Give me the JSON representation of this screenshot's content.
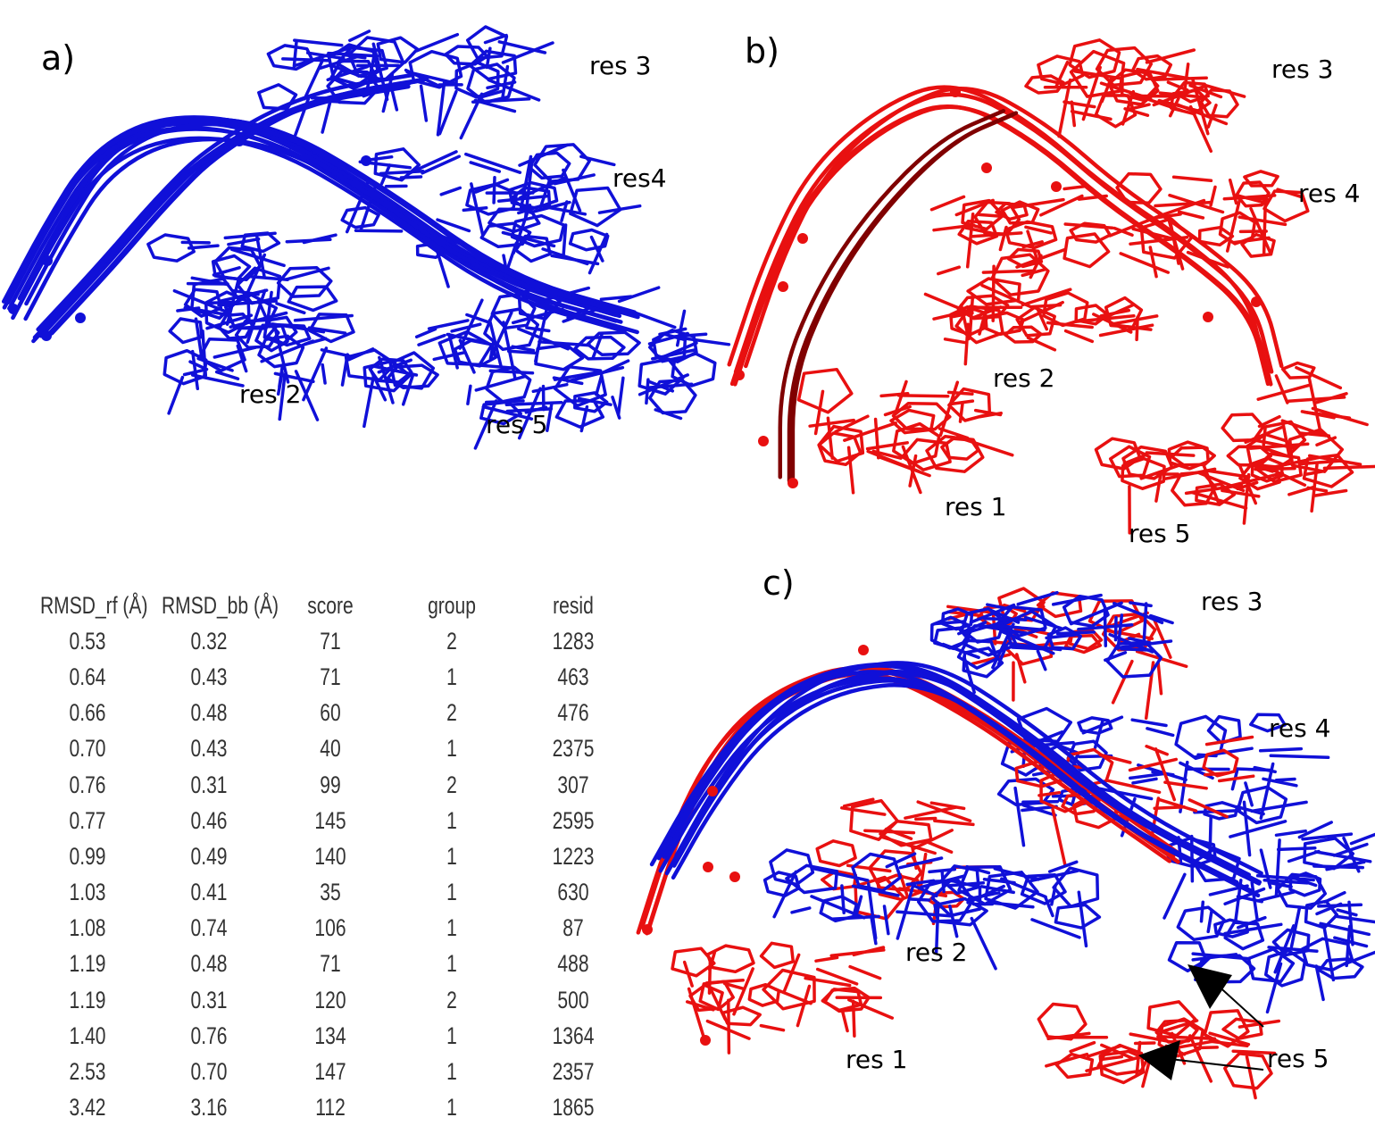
{
  "panels": {
    "a": {
      "label": "a)",
      "residues": [
        "res 3",
        "res4",
        "res 2",
        "res 5"
      ]
    },
    "b": {
      "label": "b)",
      "residues": [
        "res 3",
        "res 4",
        "res 2",
        "res 1",
        "res 5"
      ]
    },
    "c": {
      "label": "c)",
      "residues": [
        "res 3",
        "res 4",
        "res 2",
        "res 1",
        "res 5"
      ]
    }
  },
  "colors": {
    "cluster_a": "#1010d8",
    "cluster_b": "#e81010",
    "backbone_dark": "#800000",
    "arrow": "#000000"
  },
  "table": {
    "headers": [
      "RMSD_rf (Å)",
      "RMSD_bb (Å)",
      "score",
      "group",
      "resid"
    ],
    "rows": [
      [
        "0.53",
        "0.32",
        "71",
        "2",
        "1283"
      ],
      [
        "0.64",
        "0.43",
        "71",
        "1",
        "463"
      ],
      [
        "0.66",
        "0.48",
        "60",
        "2",
        "476"
      ],
      [
        "0.70",
        "0.43",
        "40",
        "1",
        "2375"
      ],
      [
        "0.76",
        "0.31",
        "99",
        "2",
        "307"
      ],
      [
        "0.77",
        "0.46",
        "145",
        "1",
        "2595"
      ],
      [
        "0.99",
        "0.49",
        "140",
        "1",
        "1223"
      ],
      [
        "1.03",
        "0.41",
        "35",
        "1",
        "630"
      ],
      [
        "1.08",
        "0.74",
        "106",
        "1",
        "87"
      ],
      [
        "1.19",
        "0.48",
        "71",
        "1",
        "488"
      ],
      [
        "1.19",
        "0.31",
        "120",
        "2",
        "500"
      ],
      [
        "1.40",
        "0.76",
        "134",
        "1",
        "1364"
      ],
      [
        "2.53",
        "0.70",
        "147",
        "1",
        "2357"
      ],
      [
        "3.42",
        "3.16",
        "112",
        "1",
        "1865"
      ]
    ]
  }
}
